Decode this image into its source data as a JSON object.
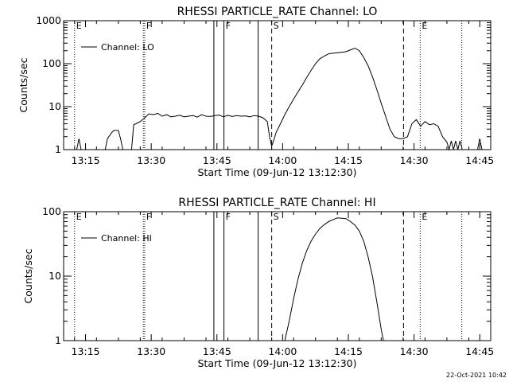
{
  "footer_timestamp": "22-Oct-2021 10:42",
  "chart_data": [
    {
      "type": "line",
      "title": "RHESSI PARTICLE_RATE Channel: LO",
      "xlabel": "Start Time (09-Jun-12 13:12:30)",
      "ylabel": "Counts/sec",
      "yscale": "log",
      "ylim": [
        1,
        1000
      ],
      "xlim_minutes": [
        -2.5,
        95
      ],
      "xticks": [
        {
          "t": 2.5,
          "label": "13:15"
        },
        {
          "t": 17.5,
          "label": "13:30"
        },
        {
          "t": 32.5,
          "label": "13:45"
        },
        {
          "t": 47.5,
          "label": "14:00"
        },
        {
          "t": 62.5,
          "label": "14:15"
        },
        {
          "t": 77.5,
          "label": "14:30"
        },
        {
          "t": 92.5,
          "label": "14:45"
        }
      ],
      "yticks": [
        {
          "v": 1,
          "label": "1"
        },
        {
          "v": 10,
          "label": "10"
        },
        {
          "v": 100,
          "label": "100"
        },
        {
          "v": 1000,
          "label": "1000"
        }
      ],
      "legend": {
        "label": "Channel: LO",
        "placement": "top-left"
      },
      "markers": [
        {
          "t": 0,
          "label": "E",
          "style": "dotted"
        },
        {
          "t": 15.7,
          "label": "",
          "style": "dotted"
        },
        {
          "t": 16.0,
          "label": "F",
          "style": "dotted"
        },
        {
          "t": 31.8,
          "label": "",
          "style": "solid"
        },
        {
          "t": 34.1,
          "label": "F",
          "style": "solid"
        },
        {
          "t": 41.9,
          "label": "",
          "style": "solid"
        },
        {
          "t": 45.0,
          "label": "S",
          "style": "dashed"
        },
        {
          "t": 75.1,
          "label": "",
          "style": "dashed"
        },
        {
          "t": 78.9,
          "label": "E",
          "style": "dotted"
        },
        {
          "t": 88.4,
          "label": "",
          "style": "dotted"
        }
      ],
      "series": [
        {
          "name": "Channel: LO",
          "points": [
            [
              0.5,
              1
            ],
            [
              1.0,
              1.8
            ],
            [
              1.5,
              1
            ],
            [
              7.0,
              1
            ],
            [
              7.5,
              1.8
            ],
            [
              8.5,
              2.5
            ],
            [
              9.0,
              2.8
            ],
            [
              10.0,
              2.8
            ],
            [
              10.5,
              1.8
            ],
            [
              11.0,
              1
            ],
            [
              12.5,
              1
            ],
            [
              13.0,
              1
            ],
            [
              13.5,
              3.8
            ],
            [
              14.0,
              4.0
            ],
            [
              15.0,
              4.5
            ],
            [
              16.0,
              5.5
            ],
            [
              17.0,
              6.8
            ],
            [
              18.0,
              6.5
            ],
            [
              19.0,
              7.0
            ],
            [
              20.0,
              6.0
            ],
            [
              21.0,
              6.5
            ],
            [
              22.0,
              5.8
            ],
            [
              23.0,
              6.0
            ],
            [
              24.0,
              6.3
            ],
            [
              25.0,
              5.8
            ],
            [
              26.0,
              6.0
            ],
            [
              27.0,
              6.2
            ],
            [
              28.0,
              5.7
            ],
            [
              29.0,
              6.5
            ],
            [
              30.0,
              6.0
            ],
            [
              31.0,
              5.9
            ],
            [
              32.0,
              6.2
            ],
            [
              33.0,
              6.4
            ],
            [
              34.0,
              5.8
            ],
            [
              35.0,
              6.3
            ],
            [
              36.0,
              5.9
            ],
            [
              37.0,
              6.2
            ],
            [
              38.0,
              6.0
            ],
            [
              39.0,
              6.1
            ],
            [
              40.0,
              5.8
            ],
            [
              41.0,
              6.2
            ],
            [
              42.0,
              6.0
            ],
            [
              43.0,
              5.5
            ],
            [
              44.0,
              4.5
            ],
            [
              44.5,
              2.0
            ],
            [
              45.0,
              1.2
            ],
            [
              45.5,
              1.7
            ],
            [
              46.0,
              2.5
            ],
            [
              47.0,
              4.0
            ],
            [
              48.0,
              6.5
            ],
            [
              49.0,
              10
            ],
            [
              50.0,
              15
            ],
            [
              51.0,
              22
            ],
            [
              52.0,
              32
            ],
            [
              53.0,
              48
            ],
            [
              54.0,
              70
            ],
            [
              55.0,
              100
            ],
            [
              56.0,
              130
            ],
            [
              57.0,
              150
            ],
            [
              58.0,
              170
            ],
            [
              59.0,
              175
            ],
            [
              60.0,
              180
            ],
            [
              61.0,
              185
            ],
            [
              62.0,
              190
            ],
            [
              63.0,
              210
            ],
            [
              64.0,
              230
            ],
            [
              65.0,
              200
            ],
            [
              66.0,
              140
            ],
            [
              67.0,
              90
            ],
            [
              68.0,
              50
            ],
            [
              69.0,
              25
            ],
            [
              70.0,
              12
            ],
            [
              71.0,
              6
            ],
            [
              72.0,
              3
            ],
            [
              73.0,
              2
            ],
            [
              74.0,
              1.8
            ],
            [
              75.0,
              1.8
            ],
            [
              76.0,
              2.0
            ],
            [
              77.0,
              4.0
            ],
            [
              78.0,
              5.0
            ],
            [
              79.0,
              3.5
            ],
            [
              80.0,
              4.5
            ],
            [
              81.0,
              3.8
            ],
            [
              82.0,
              4.0
            ],
            [
              83.0,
              3.5
            ],
            [
              84.0,
              2.0
            ],
            [
              85.0,
              1.5
            ],
            [
              85.5,
              1
            ],
            [
              86.0,
              1.6
            ],
            [
              86.5,
              1
            ],
            [
              87.0,
              1.6
            ],
            [
              87.5,
              1
            ],
            [
              88.0,
              1.6
            ],
            [
              88.5,
              1
            ],
            [
              92.0,
              1
            ],
            [
              92.5,
              1.8
            ],
            [
              93.0,
              1
            ]
          ]
        }
      ]
    },
    {
      "type": "line",
      "title": "RHESSI PARTICLE_RATE Channel: HI",
      "xlabel": "Start Time (09-Jun-12 13:12:30)",
      "ylabel": "Counts/sec",
      "yscale": "log",
      "ylim": [
        1,
        100
      ],
      "xlim_minutes": [
        -2.5,
        95
      ],
      "xticks": [
        {
          "t": 2.5,
          "label": "13:15"
        },
        {
          "t": 17.5,
          "label": "13:30"
        },
        {
          "t": 32.5,
          "label": "13:45"
        },
        {
          "t": 47.5,
          "label": "14:00"
        },
        {
          "t": 62.5,
          "label": "14:15"
        },
        {
          "t": 77.5,
          "label": "14:30"
        },
        {
          "t": 92.5,
          "label": "14:45"
        }
      ],
      "yticks": [
        {
          "v": 1,
          "label": "1"
        },
        {
          "v": 10,
          "label": "10"
        },
        {
          "v": 100,
          "label": "100"
        }
      ],
      "legend": {
        "label": "Channel: HI",
        "placement": "top-left"
      },
      "markers": [
        {
          "t": 0,
          "label": "E",
          "style": "dotted"
        },
        {
          "t": 15.7,
          "label": "",
          "style": "dotted"
        },
        {
          "t": 16.0,
          "label": "F",
          "style": "dotted"
        },
        {
          "t": 31.8,
          "label": "",
          "style": "solid"
        },
        {
          "t": 34.1,
          "label": "F",
          "style": "solid"
        },
        {
          "t": 41.9,
          "label": "",
          "style": "solid"
        },
        {
          "t": 45.0,
          "label": "S",
          "style": "dashed"
        },
        {
          "t": 75.1,
          "label": "",
          "style": "dashed"
        },
        {
          "t": 78.9,
          "label": "E",
          "style": "dotted"
        },
        {
          "t": 88.4,
          "label": "",
          "style": "dotted"
        }
      ],
      "series": [
        {
          "name": "Channel: HI",
          "points": [
            [
              48.0,
              1
            ],
            [
              49.0,
              2.0
            ],
            [
              50.0,
              4.5
            ],
            [
              51.0,
              9
            ],
            [
              52.0,
              16
            ],
            [
              53.0,
              25
            ],
            [
              54.0,
              35
            ],
            [
              55.0,
              45
            ],
            [
              56.0,
              55
            ],
            [
              57.0,
              63
            ],
            [
              58.0,
              70
            ],
            [
              59.0,
              75
            ],
            [
              60.0,
              80
            ],
            [
              61.0,
              79
            ],
            [
              62.0,
              78
            ],
            [
              63.0,
              70
            ],
            [
              64.0,
              62
            ],
            [
              65.0,
              50
            ],
            [
              66.0,
              35
            ],
            [
              67.0,
              20
            ],
            [
              68.0,
              10
            ],
            [
              69.0,
              4
            ],
            [
              70.0,
              1.5
            ],
            [
              70.5,
              1
            ]
          ]
        }
      ]
    }
  ]
}
